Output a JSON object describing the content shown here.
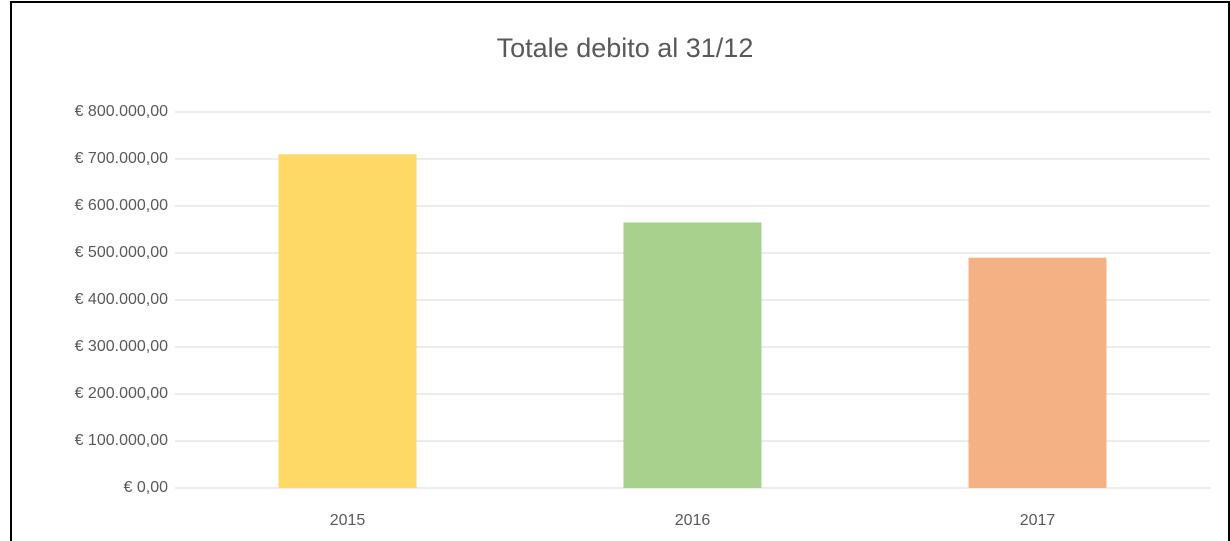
{
  "chart_data": {
    "type": "bar",
    "title": "Totale debito al 31/12",
    "categories": [
      "2015",
      "2016",
      "2017"
    ],
    "values": [
      710000,
      565000,
      490000
    ],
    "colors": [
      "#ffd966",
      "#a9d18e",
      "#f4b183"
    ],
    "ylim": [
      0,
      800000
    ],
    "yticks": [
      {
        "value": 0,
        "label": "€ 0,00"
      },
      {
        "value": 100000,
        "label": "€ 100.000,00"
      },
      {
        "value": 200000,
        "label": "€ 200.000,00"
      },
      {
        "value": 300000,
        "label": "€ 300.000,00"
      },
      {
        "value": 400000,
        "label": "€ 400.000,00"
      },
      {
        "value": 500000,
        "label": "€ 500.000,00"
      },
      {
        "value": 600000,
        "label": "€ 600.000,00"
      },
      {
        "value": 700000,
        "label": "€ 700.000,00"
      },
      {
        "value": 800000,
        "label": "€ 800.000,00"
      }
    ],
    "grid": true
  }
}
